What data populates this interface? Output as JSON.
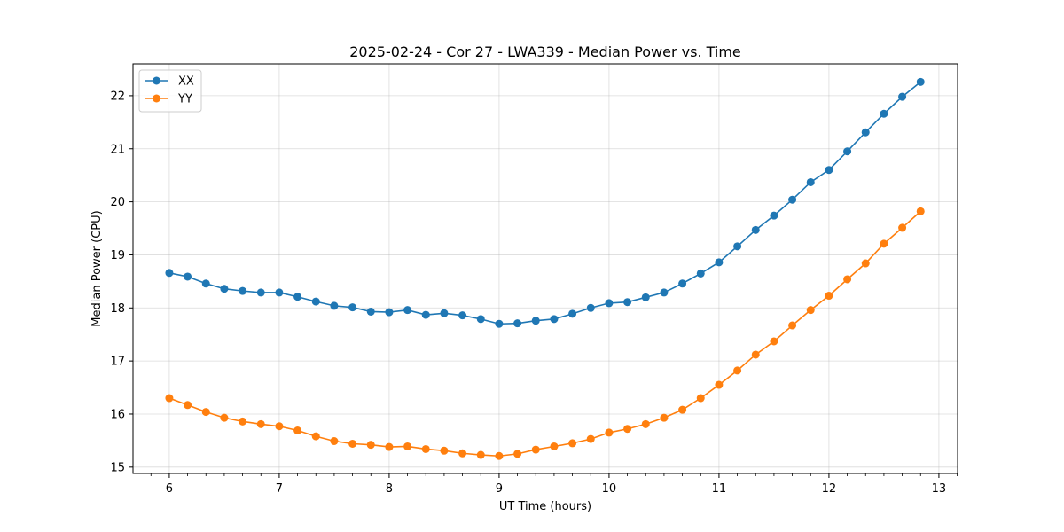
{
  "chart_data": {
    "type": "line",
    "title": "2025-02-24 - Cor 27 - LWA339 - Median Power vs. Time",
    "xlabel": "UT Time (hours)",
    "ylabel": "Median Power (CPU)",
    "xlim": [
      5.67,
      13.17
    ],
    "ylim": [
      14.88,
      22.6
    ],
    "xticks": [
      6,
      7,
      8,
      9,
      10,
      11,
      12,
      13
    ],
    "yticks": [
      15,
      16,
      17,
      18,
      19,
      20,
      21,
      22
    ],
    "grid": true,
    "legend_position": "top-left",
    "x": [
      6.0,
      6.1667,
      6.3333,
      6.5,
      6.6667,
      6.8333,
      7.0,
      7.1667,
      7.3333,
      7.5,
      7.6667,
      7.8333,
      8.0,
      8.1667,
      8.3333,
      8.5,
      8.6667,
      8.8333,
      9.0,
      9.1667,
      9.3333,
      9.5,
      9.6667,
      9.8333,
      10.0,
      10.1667,
      10.3333,
      10.5,
      10.6667,
      10.8333,
      11.0,
      11.1667,
      11.3333,
      11.5,
      11.6667,
      11.8333,
      12.0,
      12.1667,
      12.3333,
      12.5,
      12.6667,
      12.8333
    ],
    "series": [
      {
        "name": "XX",
        "color": "#1f77b4",
        "values": [
          18.66,
          18.59,
          18.46,
          18.36,
          18.32,
          18.29,
          18.29,
          18.21,
          18.12,
          18.04,
          18.01,
          17.93,
          17.92,
          17.96,
          17.87,
          17.9,
          17.86,
          17.79,
          17.7,
          17.71,
          17.76,
          17.79,
          17.89,
          18.0,
          18.09,
          18.11,
          18.2,
          18.29,
          18.46,
          18.65,
          18.86,
          19.16,
          19.47,
          19.74,
          20.04,
          20.37,
          20.6,
          20.95,
          21.31,
          21.66,
          21.98,
          22.26
        ]
      },
      {
        "name": "YY",
        "color": "#ff7f0e",
        "values": [
          16.3,
          16.17,
          16.04,
          15.93,
          15.86,
          15.81,
          15.77,
          15.69,
          15.58,
          15.49,
          15.44,
          15.42,
          15.38,
          15.39,
          15.34,
          15.31,
          15.26,
          15.23,
          15.21,
          15.25,
          15.33,
          15.39,
          15.45,
          15.53,
          15.65,
          15.72,
          15.81,
          15.93,
          16.08,
          16.3,
          16.55,
          16.82,
          17.12,
          17.37,
          17.67,
          17.96,
          18.23,
          18.54,
          18.84,
          19.21,
          19.51,
          19.82
        ]
      }
    ]
  }
}
